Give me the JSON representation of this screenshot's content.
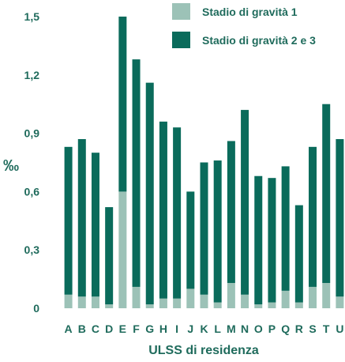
{
  "chart_data": {
    "type": "bar",
    "stacked": true,
    "categories": [
      "A",
      "B",
      "C",
      "D",
      "E",
      "F",
      "G",
      "H",
      "I",
      "J",
      "K",
      "L",
      "M",
      "N",
      "O",
      "P",
      "Q",
      "R",
      "S",
      "T",
      "U"
    ],
    "series": [
      {
        "name": "Stadio di gravità 1",
        "color": "#9cc2b7",
        "values": [
          0.07,
          0.06,
          0.06,
          0.02,
          0.6,
          0.11,
          0.02,
          0.05,
          0.05,
          0.1,
          0.07,
          0.03,
          0.13,
          0.07,
          0.02,
          0.03,
          0.09,
          0.03,
          0.11,
          0.13,
          0.06
        ]
      },
      {
        "name": "Stadio di gravità 2 e 3",
        "color": "#0a6b5b",
        "values": [
          0.76,
          0.81,
          0.74,
          0.5,
          0.9,
          1.17,
          1.14,
          0.91,
          0.88,
          0.5,
          0.68,
          0.73,
          0.73,
          0.95,
          0.66,
          0.64,
          0.64,
          0.5,
          0.72,
          0.92,
          0.81
        ]
      }
    ],
    "ylabel": "‰",
    "xlabel": "ULSS di residenza",
    "ylim": [
      0,
      1.5
    ],
    "yticks": [
      "0",
      "0,3",
      "0,6",
      "0,9",
      "1,2",
      "1,5"
    ],
    "ytick_values": [
      0,
      0.3,
      0.6,
      0.9,
      1.2,
      1.5
    ],
    "grid": false,
    "legend_position": "top-right"
  }
}
